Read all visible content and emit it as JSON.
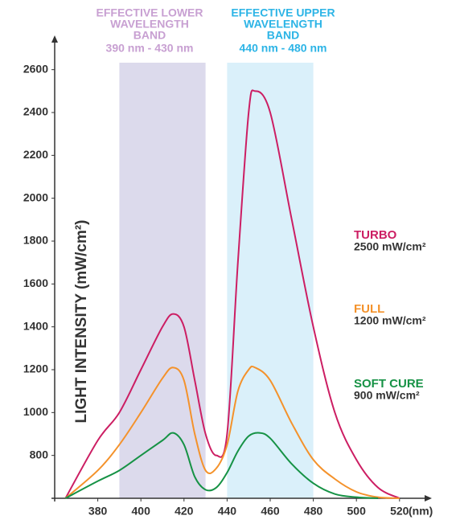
{
  "chart_data": {
    "type": "line",
    "y_label": "LIGHT INTENSITY (mW/cm²)",
    "x_unit": "(nm)",
    "xlim": [
      360,
      535
    ],
    "ylim": [
      600,
      2760
    ],
    "xticks": [
      380,
      400,
      420,
      440,
      460,
      480,
      500,
      520
    ],
    "yticks": [
      800,
      1000,
      1200,
      1400,
      1600,
      1800,
      2000,
      2200,
      2400,
      2600
    ],
    "bands": [
      {
        "title_lines": [
          "EFFECTIVE LOWER",
          "WAVELENGTH",
          "BAND"
        ],
        "range": "390 nm - 430 nm",
        "from": 390,
        "to": 430,
        "color": "#dcdaec",
        "text_color": "#c8a0d2"
      },
      {
        "title_lines": [
          "EFFECTIVE UPPER",
          "WAVELENGTH",
          "BAND"
        ],
        "range": "440 nm - 480 nm",
        "from": 440,
        "to": 480,
        "color": "#daf0fa",
        "text_color": "#2cb4e6"
      }
    ],
    "series": [
      {
        "name": "TURBO",
        "detail": "2500 mW/cm²",
        "color": "#cc1e63",
        "x": [
          365,
          380,
          390,
          400,
          410,
          415,
          420,
          425,
          430,
          435,
          440,
          445,
          450,
          453,
          460,
          470,
          480,
          490,
          500,
          510,
          520
        ],
        "values": [
          600,
          870,
          1000,
          1200,
          1400,
          1460,
          1400,
          1150,
          900,
          800,
          900,
          1700,
          2400,
          2500,
          2400,
          1900,
          1400,
          1000,
          780,
          650,
          600
        ]
      },
      {
        "name": "FULL",
        "detail": "1200 mW/cm²",
        "color": "#f4922b",
        "x": [
          365,
          380,
          390,
          400,
          410,
          415,
          420,
          425,
          430,
          435,
          440,
          445,
          450,
          453,
          460,
          470,
          480,
          490,
          500,
          510,
          520
        ],
        "values": [
          600,
          730,
          850,
          1000,
          1160,
          1210,
          1150,
          900,
          730,
          740,
          850,
          1100,
          1200,
          1210,
          1150,
          950,
          780,
          690,
          630,
          605,
          600
        ]
      },
      {
        "name": "SOFT CURE",
        "detail": "900 mW/cm²",
        "color": "#169245",
        "x": [
          365,
          380,
          390,
          400,
          410,
          415,
          420,
          425,
          430,
          435,
          440,
          445,
          450,
          455,
          460,
          470,
          480,
          490,
          500,
          510
        ],
        "values": [
          600,
          680,
          730,
          800,
          870,
          905,
          850,
          700,
          640,
          650,
          720,
          820,
          890,
          905,
          880,
          760,
          670,
          620,
          605,
          600
        ]
      }
    ]
  }
}
